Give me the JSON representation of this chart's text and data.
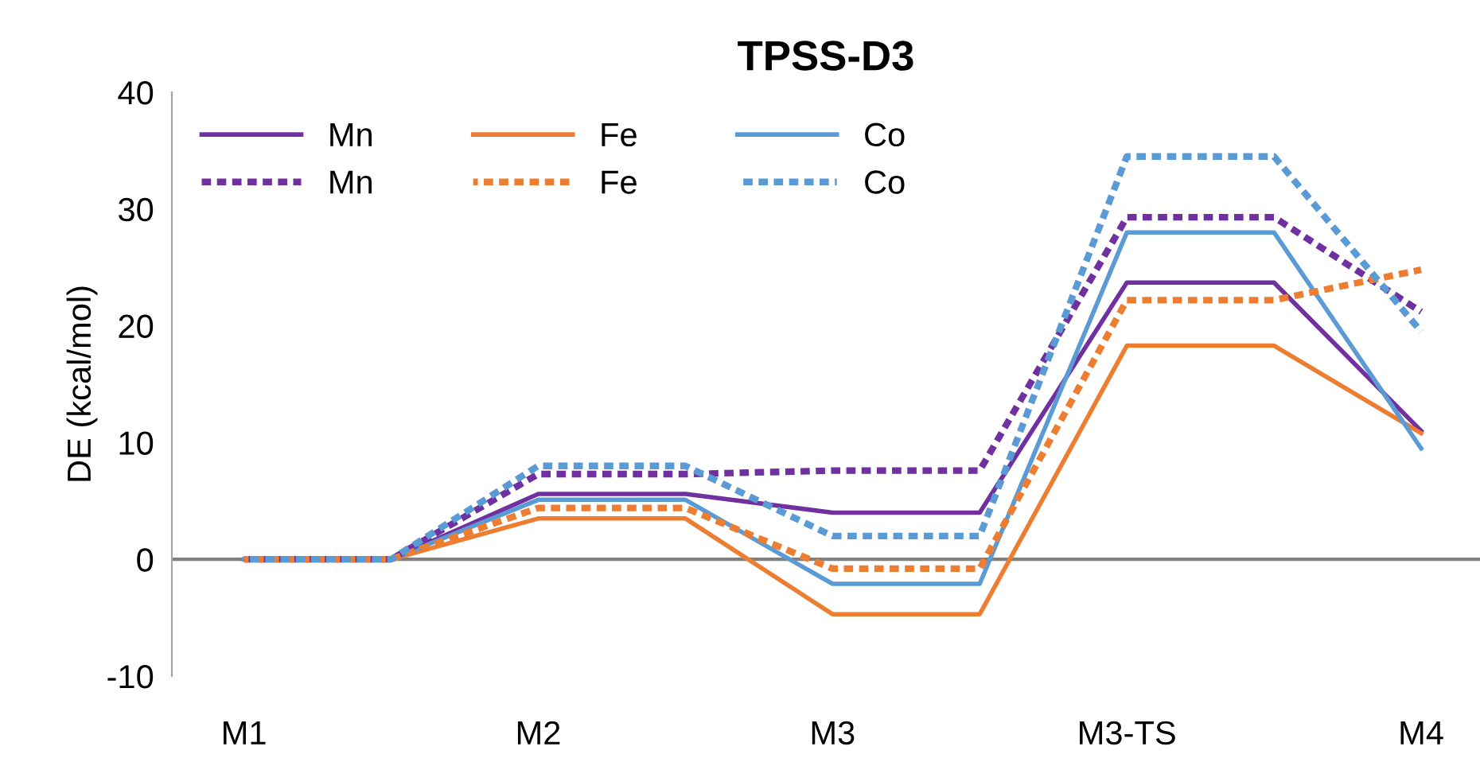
{
  "chart_data": {
    "type": "line",
    "title": "TPSS-D3",
    "ylabel": "DE (kcal/mol)",
    "categories": [
      "M1",
      null,
      "M2",
      null,
      "M3",
      null,
      "M3-TS",
      null,
      "M4"
    ],
    "ylim": [
      -10,
      40
    ],
    "yticks": [
      -10,
      0,
      10,
      20,
      30,
      40
    ],
    "grid": false,
    "ref_lines": [
      {
        "axis": "y",
        "value": 0,
        "color": "#808080"
      }
    ],
    "legend": "top left",
    "marker": "none",
    "series": [
      {
        "name": "Mn",
        "color": "#7030a0",
        "line_style": "solid",
        "values": [
          0,
          0,
          5.6,
          5.6,
          4.0,
          4.0,
          23.7,
          23.7,
          11.0
        ]
      },
      {
        "name": "Fe",
        "color": "#ed7d31",
        "line_style": "solid",
        "values": [
          0,
          0,
          3.5,
          3.5,
          -4.7,
          -4.7,
          18.3,
          18.3,
          10.8
        ]
      },
      {
        "name": "Co",
        "color": "#5b9bd5",
        "line_style": "solid",
        "values": [
          0,
          0,
          5.1,
          5.1,
          -2.1,
          -2.1,
          28.0,
          28.0,
          9.5
        ]
      },
      {
        "name": "Mn",
        "color": "#7030a0",
        "line_style": "dotted",
        "values": [
          0,
          0,
          7.3,
          7.3,
          7.6,
          7.6,
          29.3,
          29.3,
          21.2
        ]
      },
      {
        "name": "Fe",
        "color": "#ed7d31",
        "line_style": "dotted",
        "values": [
          0,
          0,
          4.4,
          4.4,
          -0.8,
          -0.8,
          22.2,
          22.2,
          24.8
        ]
      },
      {
        "name": "Co",
        "color": "#5b9bd5",
        "line_style": "dotted",
        "values": [
          0,
          0,
          8.0,
          8.0,
          2.0,
          2.0,
          34.5,
          34.5,
          19.5
        ]
      }
    ]
  }
}
